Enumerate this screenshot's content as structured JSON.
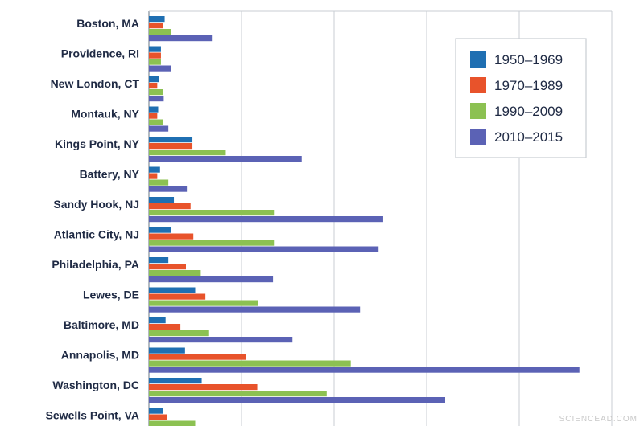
{
  "chart_data": {
    "type": "bar",
    "orientation": "horizontal",
    "title": "",
    "xlabel": "",
    "ylabel": "",
    "categories": [
      "Boston, MA",
      "Providence, RI",
      "New London, CT",
      "Montauk, NY",
      "Kings Point, NY",
      "Battery, NY",
      "Sandy Hook, NJ",
      "Atlantic City, NJ",
      "Philadelphia, PA",
      "Lewes, DE",
      "Baltimore, MD",
      "Annapolis, MD",
      "Washington, DC",
      "Sewells Point, VA"
    ],
    "series": [
      {
        "name": "1950–1969",
        "color": "#1f6fb2",
        "values": [
          1.7,
          1.3,
          1.1,
          1.0,
          4.7,
          1.2,
          2.7,
          2.4,
          2.1,
          5.0,
          1.8,
          3.9,
          5.7,
          1.5
        ]
      },
      {
        "name": "1970–1989",
        "color": "#e8532b",
        "values": [
          1.5,
          1.3,
          0.9,
          0.9,
          4.7,
          0.9,
          4.5,
          4.8,
          4.0,
          6.1,
          3.4,
          10.5,
          11.7,
          2.0
        ]
      },
      {
        "name": "1990–2009",
        "color": "#8cc152",
        "values": [
          2.4,
          1.3,
          1.5,
          1.5,
          8.3,
          2.1,
          13.5,
          13.5,
          5.6,
          11.8,
          6.5,
          21.8,
          19.2,
          5.0
        ]
      },
      {
        "name": "2010–2015",
        "color": "#5b62b5",
        "values": [
          6.8,
          2.4,
          1.6,
          2.1,
          16.5,
          4.1,
          25.3,
          24.8,
          13.4,
          22.8,
          15.5,
          46.5,
          32.0,
          0
        ]
      }
    ],
    "xlim": [
      0,
      50
    ],
    "gridlines": [
      0,
      10,
      20,
      30,
      40,
      50
    ],
    "grid": true,
    "legend": "top-right"
  },
  "watermark": "SCIENCEAD.COM"
}
